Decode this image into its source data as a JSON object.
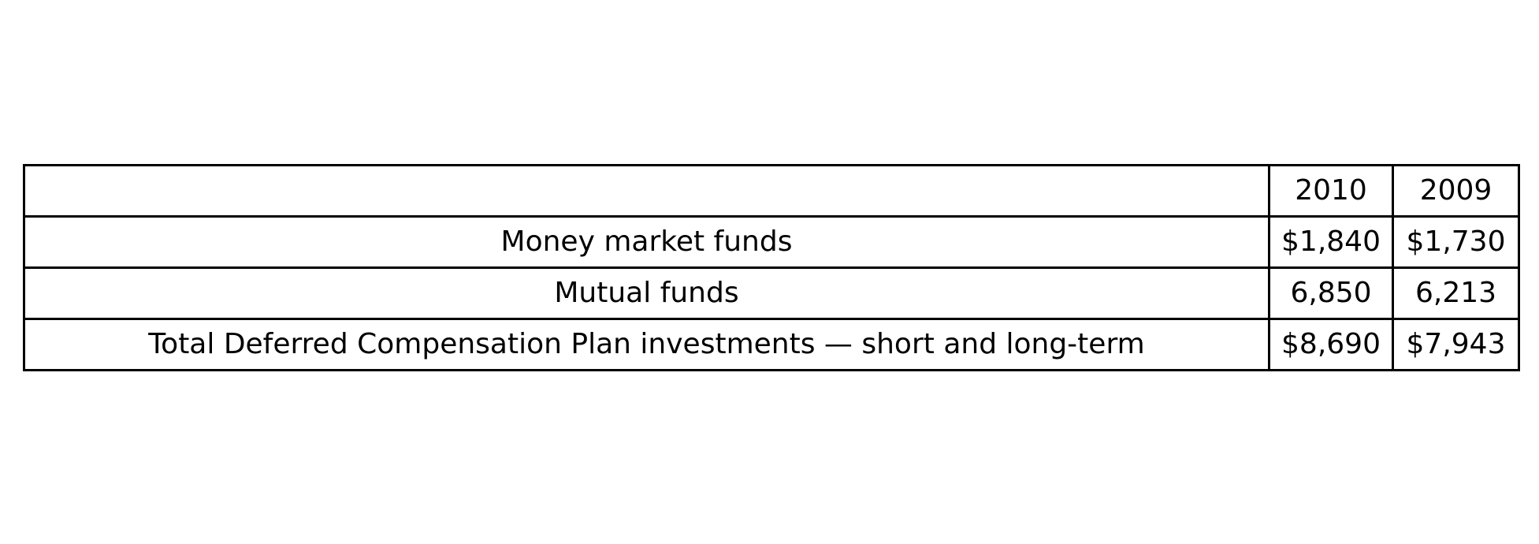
{
  "table": {
    "headers": [
      "",
      "2010",
      "2009"
    ],
    "rows": [
      {
        "label": "Money market funds",
        "y2010": "$1,840",
        "y2009": "$1,730"
      },
      {
        "label": "Mutual funds",
        "y2010": "6,850",
        "y2009": "6,213"
      },
      {
        "label": "Total Deferred Compensation Plan investments — short and long-term",
        "y2010": "$8,690",
        "y2009": "$7,943"
      }
    ]
  }
}
